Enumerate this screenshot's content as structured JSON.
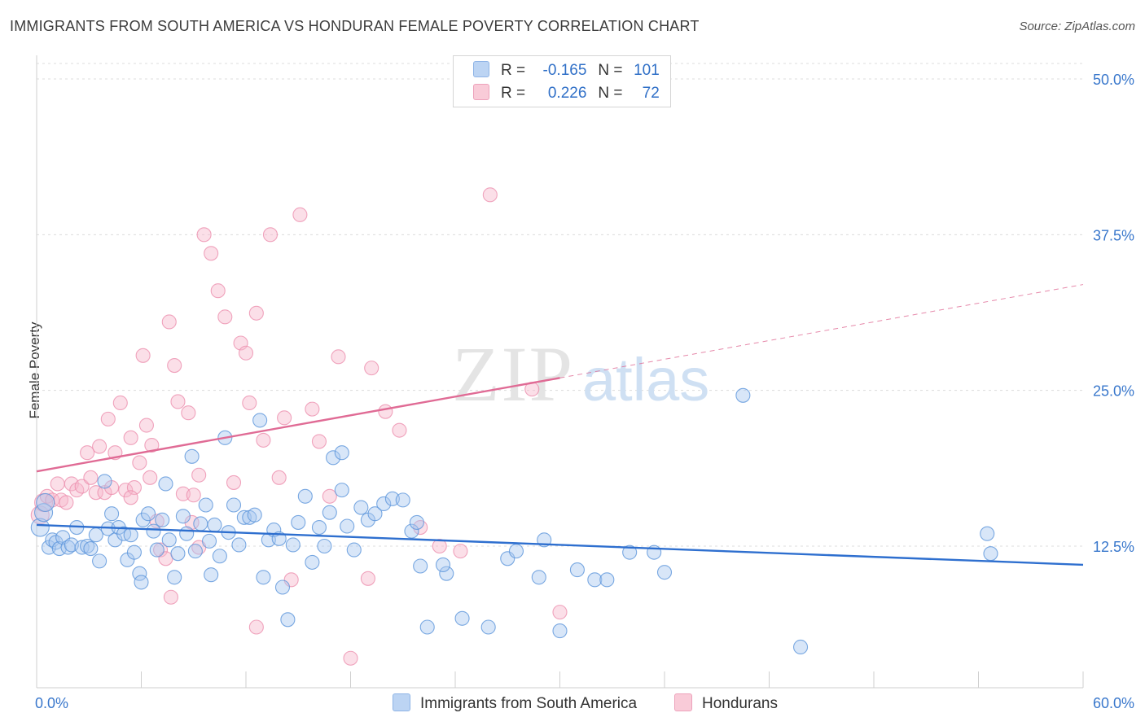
{
  "header": {
    "title": "IMMIGRANTS FROM SOUTH AMERICA VS HONDURAN FEMALE POVERTY CORRELATION CHART",
    "source": "Source: ZipAtlas.com"
  },
  "watermark": {
    "zip": "ZIP",
    "atlas": "atlas"
  },
  "legend_top": {
    "rows": [
      {
        "r_label": "R =",
        "r_value": "-0.165",
        "n_label": "N =",
        "n_value": "101",
        "color": "#a9c8ef"
      },
      {
        "r_label": "R =",
        "r_value": "0.226",
        "n_label": "N =",
        "n_value": "72",
        "color": "#f7b8cb"
      }
    ]
  },
  "legend_bottom": [
    {
      "label": "Immigrants from South America",
      "color": "#a9c8ef"
    },
    {
      "label": "Hondurans",
      "color": "#f7b8cb"
    }
  ],
  "chart_data": {
    "type": "scatter",
    "title": "IMMIGRANTS FROM SOUTH AMERICA VS HONDURAN FEMALE POVERTY CORRELATION CHART",
    "xlabel": "",
    "ylabel": "Female Poverty",
    "xlim": [
      0,
      60
    ],
    "ylim": [
      0,
      50
    ],
    "x_tick_labels": [
      "0.0%",
      "60.0%"
    ],
    "y_tick_values": [
      12.5,
      25.0,
      37.5,
      50.0
    ],
    "y_tick_labels": [
      "12.5%",
      "25.0%",
      "37.5%",
      "50.0%"
    ],
    "grid": true,
    "colors": {
      "blue": "#5b95db",
      "blue_fill": "#a9c8ef",
      "pink": "#ec8fae",
      "pink_fill": "#f7b8cb",
      "blue_line": "#2e6fcf",
      "pink_line": "#e06b95"
    },
    "series": [
      {
        "name": "Immigrants from South America",
        "trend": {
          "x": [
            0,
            60
          ],
          "y": [
            14.2,
            11.0
          ],
          "dashed_from": null
        },
        "points": [
          [
            0.2,
            14.0
          ],
          [
            0.4,
            15.2
          ],
          [
            0.5,
            16.0
          ],
          [
            0.7,
            12.4
          ],
          [
            0.9,
            13.0
          ],
          [
            1.1,
            12.8
          ],
          [
            1.3,
            12.3
          ],
          [
            1.5,
            13.2
          ],
          [
            1.8,
            12.4
          ],
          [
            2.0,
            12.6
          ],
          [
            2.3,
            14.0
          ],
          [
            2.6,
            12.4
          ],
          [
            2.9,
            12.5
          ],
          [
            3.1,
            12.3
          ],
          [
            3.4,
            13.4
          ],
          [
            3.6,
            11.3
          ],
          [
            3.9,
            17.7
          ],
          [
            4.1,
            13.9
          ],
          [
            4.3,
            15.1
          ],
          [
            4.5,
            13.0
          ],
          [
            4.7,
            14.0
          ],
          [
            5.0,
            13.5
          ],
          [
            5.2,
            11.4
          ],
          [
            5.4,
            13.4
          ],
          [
            5.6,
            12.0
          ],
          [
            5.9,
            10.3
          ],
          [
            6.1,
            14.6
          ],
          [
            6.4,
            15.1
          ],
          [
            6.7,
            13.7
          ],
          [
            6.9,
            12.2
          ],
          [
            7.2,
            14.6
          ],
          [
            7.4,
            17.5
          ],
          [
            7.6,
            13.0
          ],
          [
            7.9,
            10.0
          ],
          [
            8.1,
            11.9
          ],
          [
            8.4,
            14.9
          ],
          [
            8.6,
            13.5
          ],
          [
            8.9,
            19.7
          ],
          [
            9.1,
            12.1
          ],
          [
            9.4,
            14.3
          ],
          [
            9.7,
            15.8
          ],
          [
            9.9,
            12.9
          ],
          [
            10.2,
            14.2
          ],
          [
            10.5,
            11.7
          ],
          [
            10.8,
            21.2
          ],
          [
            11.0,
            13.6
          ],
          [
            11.3,
            15.8
          ],
          [
            11.6,
            12.6
          ],
          [
            11.9,
            14.8
          ],
          [
            12.2,
            14.8
          ],
          [
            12.5,
            15.0
          ],
          [
            12.8,
            22.6
          ],
          [
            13.0,
            10.0
          ],
          [
            13.3,
            13.0
          ],
          [
            13.6,
            13.8
          ],
          [
            13.9,
            13.1
          ],
          [
            14.1,
            9.2
          ],
          [
            14.4,
            6.6
          ],
          [
            14.7,
            12.6
          ],
          [
            15.0,
            14.4
          ],
          [
            15.4,
            16.5
          ],
          [
            15.8,
            11.2
          ],
          [
            16.2,
            14.0
          ],
          [
            16.5,
            12.5
          ],
          [
            17.0,
            19.6
          ],
          [
            17.5,
            20.0
          ],
          [
            17.8,
            14.1
          ],
          [
            18.2,
            12.2
          ],
          [
            18.6,
            15.6
          ],
          [
            19.0,
            14.6
          ],
          [
            19.4,
            15.1
          ],
          [
            19.9,
            15.9
          ],
          [
            20.4,
            16.3
          ],
          [
            21.0,
            16.2
          ],
          [
            21.5,
            13.7
          ],
          [
            22.0,
            10.9
          ],
          [
            22.4,
            6.0
          ],
          [
            23.5,
            10.3
          ],
          [
            24.4,
            6.7
          ],
          [
            25.9,
            6.0
          ],
          [
            27.0,
            11.5
          ],
          [
            28.8,
            10.0
          ],
          [
            29.1,
            13.0
          ],
          [
            32.0,
            9.8
          ],
          [
            32.7,
            9.8
          ],
          [
            34.0,
            12.0
          ],
          [
            35.4,
            12.0
          ],
          [
            36.0,
            10.4
          ],
          [
            40.5,
            24.6
          ],
          [
            43.8,
            4.4
          ],
          [
            54.5,
            13.5
          ],
          [
            54.7,
            11.9
          ],
          [
            23.3,
            11.0
          ],
          [
            17.5,
            17.0
          ],
          [
            10.0,
            10.2
          ],
          [
            6.0,
            9.6
          ],
          [
            31.0,
            10.6
          ],
          [
            27.5,
            12.1
          ],
          [
            30.0,
            5.7
          ],
          [
            21.8,
            14.4
          ],
          [
            16.8,
            15.2
          ]
        ]
      },
      {
        "name": "Hondurans",
        "trend": {
          "x": [
            0,
            60
          ],
          "y": [
            18.5,
            33.5
          ],
          "dashed_from": 30
        },
        "points": [
          [
            0.2,
            15.0
          ],
          [
            0.4,
            16.0
          ],
          [
            0.6,
            16.5
          ],
          [
            0.9,
            16.2
          ],
          [
            1.2,
            17.5
          ],
          [
            1.4,
            16.2
          ],
          [
            1.7,
            16.0
          ],
          [
            2.0,
            17.5
          ],
          [
            2.3,
            17.0
          ],
          [
            2.6,
            17.3
          ],
          [
            2.9,
            20.0
          ],
          [
            3.1,
            18.0
          ],
          [
            3.4,
            16.8
          ],
          [
            3.6,
            20.5
          ],
          [
            3.9,
            16.8
          ],
          [
            4.1,
            22.7
          ],
          [
            4.3,
            17.2
          ],
          [
            4.5,
            20.0
          ],
          [
            4.8,
            24.0
          ],
          [
            5.1,
            17.0
          ],
          [
            5.4,
            21.2
          ],
          [
            5.6,
            17.2
          ],
          [
            5.9,
            19.2
          ],
          [
            6.1,
            27.8
          ],
          [
            6.3,
            22.2
          ],
          [
            6.6,
            20.6
          ],
          [
            6.9,
            14.5
          ],
          [
            7.1,
            12.2
          ],
          [
            7.4,
            11.5
          ],
          [
            7.6,
            30.5
          ],
          [
            7.9,
            27.0
          ],
          [
            8.1,
            24.1
          ],
          [
            8.4,
            16.7
          ],
          [
            8.7,
            23.2
          ],
          [
            9.0,
            16.6
          ],
          [
            9.3,
            12.4
          ],
          [
            9.6,
            37.5
          ],
          [
            10.0,
            36.0
          ],
          [
            10.4,
            33.0
          ],
          [
            10.8,
            30.9
          ],
          [
            11.3,
            17.6
          ],
          [
            11.7,
            28.8
          ],
          [
            12.2,
            24.0
          ],
          [
            12.6,
            31.2
          ],
          [
            13.0,
            21.0
          ],
          [
            13.4,
            37.5
          ],
          [
            13.9,
            18.0
          ],
          [
            14.2,
            22.8
          ],
          [
            14.6,
            9.8
          ],
          [
            15.1,
            39.1
          ],
          [
            15.8,
            23.5
          ],
          [
            16.2,
            20.9
          ],
          [
            16.8,
            16.5
          ],
          [
            17.3,
            27.7
          ],
          [
            18.0,
            3.5
          ],
          [
            19.0,
            9.9
          ],
          [
            20.0,
            23.3
          ],
          [
            20.8,
            21.8
          ],
          [
            22.0,
            14.0
          ],
          [
            23.1,
            12.5
          ],
          [
            24.3,
            12.1
          ],
          [
            26.0,
            40.7
          ],
          [
            28.4,
            25.1
          ],
          [
            30.0,
            7.2
          ],
          [
            7.7,
            8.4
          ],
          [
            12.6,
            6.0
          ],
          [
            8.9,
            14.4
          ],
          [
            6.5,
            18.0
          ],
          [
            12.0,
            28.0
          ],
          [
            9.3,
            18.2
          ],
          [
            5.4,
            16.4
          ],
          [
            19.2,
            26.8
          ]
        ]
      }
    ]
  }
}
